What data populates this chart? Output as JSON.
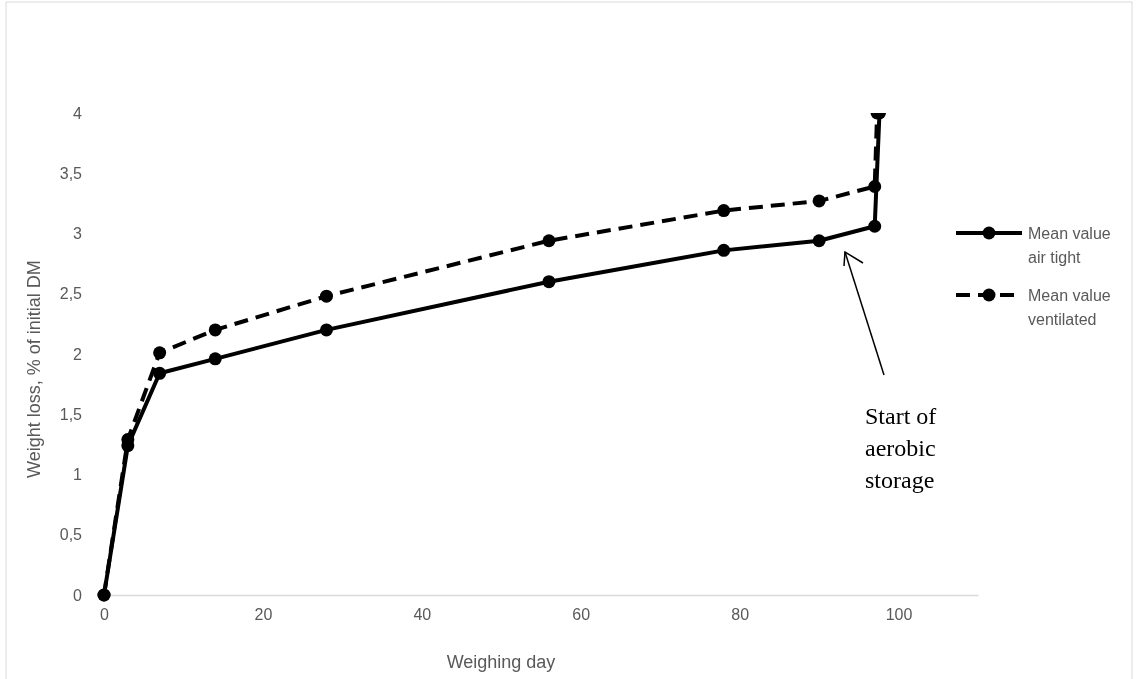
{
  "chart_data": {
    "type": "line",
    "xlabel": "Weighing day",
    "ylabel": "Weight loss, % of initial DM",
    "xlim": [
      0,
      110
    ],
    "xticks": [
      0,
      20,
      40,
      60,
      80,
      100
    ],
    "ylim": [
      0,
      4
    ],
    "yticks": [
      0,
      {
        "value": 0.5,
        "label": "0,5"
      },
      1,
      {
        "value": 1.5,
        "label": "1,5"
      },
      2,
      {
        "value": 2.5,
        "label": "2,5"
      },
      3,
      {
        "value": 3.5,
        "label": "3,5"
      },
      4
    ],
    "series": [
      {
        "name": "Mean value air tight",
        "color": "#000000",
        "line_style": "solid",
        "x": [
          0,
          3,
          7,
          14,
          28,
          56,
          78,
          90,
          97,
          97.6
        ],
        "values": [
          0,
          1.24,
          1.84,
          1.96,
          2.2,
          2.6,
          2.86,
          2.94,
          3.06,
          4
        ]
      },
      {
        "name": "Mean value ventilated",
        "color": "#000000",
        "line_style": "dashed",
        "x": [
          0,
          3,
          7,
          14,
          28,
          56,
          78,
          90,
          97,
          97.3
        ],
        "values": [
          0,
          1.29,
          2.01,
          2.2,
          2.48,
          2.94,
          3.19,
          3.27,
          3.39,
          4
        ]
      }
    ],
    "marker": "circle",
    "grid": false,
    "legend": "right",
    "annotations": [
      "Start of aerobic storage"
    ]
  }
}
